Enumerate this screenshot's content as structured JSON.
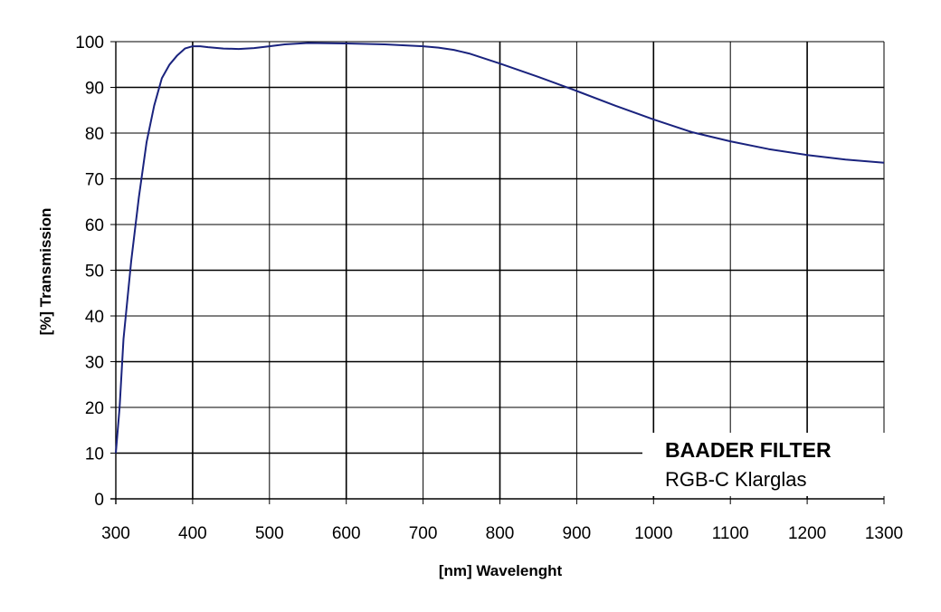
{
  "chart_data": {
    "type": "line",
    "xlabel": "[nm] Wavelenght",
    "ylabel": "[%] Transmission",
    "xlim": [
      300,
      1300
    ],
    "ylim": [
      0,
      100
    ],
    "x_ticks": [
      "300",
      "400",
      "500",
      "600",
      "700",
      "800",
      "900",
      "1000",
      "1100",
      "1200",
      "1300"
    ],
    "y_ticks": [
      "0",
      "10",
      "20",
      "30",
      "40",
      "50",
      "60",
      "70",
      "80",
      "90",
      "100"
    ],
    "grid": true,
    "legend_placement": "bottom-right",
    "line_color": "#1a237e",
    "annotation": {
      "title": "BAADER FILTER",
      "subtitle": "RGB-C Klarglas"
    },
    "series": [
      {
        "x": [
          300,
          305,
          310,
          320,
          330,
          340,
          350,
          360,
          370,
          380,
          390,
          400,
          410,
          420,
          440,
          460,
          480,
          500,
          520,
          550,
          600,
          650,
          700,
          720,
          740,
          760,
          800,
          850,
          900,
          950,
          1000,
          1050,
          1100,
          1150,
          1200,
          1250,
          1300
        ],
        "y": [
          10,
          20,
          35,
          52,
          66,
          78,
          86,
          92,
          95,
          97,
          98.5,
          99,
          99,
          98.8,
          98.5,
          98.4,
          98.6,
          99,
          99.4,
          99.7,
          99.6,
          99.4,
          99,
          98.7,
          98.2,
          97.4,
          95.2,
          92.3,
          89.2,
          86,
          83,
          80.2,
          78.2,
          76.5,
          75.2,
          74.2,
          73.5
        ]
      }
    ]
  }
}
